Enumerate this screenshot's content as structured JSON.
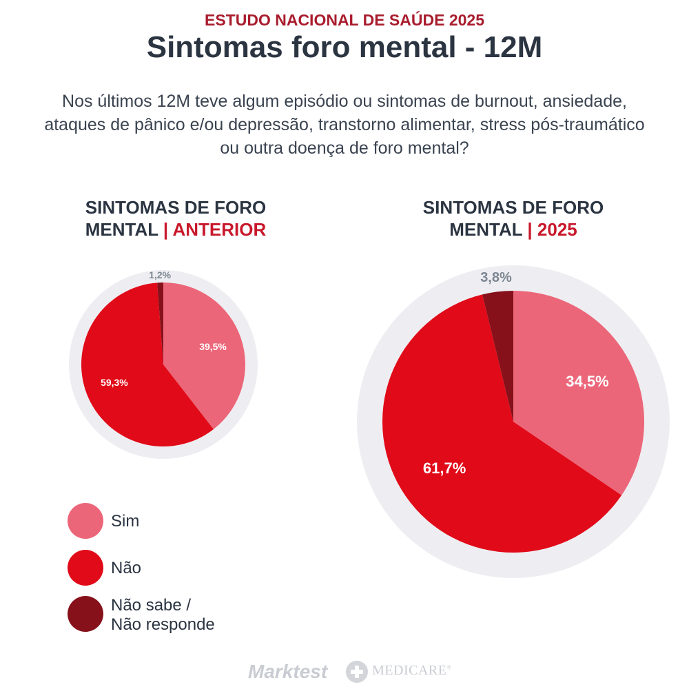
{
  "header": {
    "kicker": "ESTUDO NACIONAL DE SAÚDE 2025",
    "title": "Sintomas foro mental - 12M",
    "question": "Nos últimos 12M teve algum episódio ou sintomas de burnout, ansiedade, ataques de pânico e/ou depressão, transtorno alimentar, stress pós-traumático ou outra doença de foro mental?"
  },
  "colors": {
    "sim": "#ec6679",
    "nao": "#e10a18",
    "ns_nr": "#86111b",
    "ring": "#eeeef2",
    "accent": "#c8182b",
    "outside_label": "#7b8691"
  },
  "chart_data": [
    {
      "type": "pie",
      "title_main": "SINTOMAS DE FORO MENTAL",
      "title_sep": "|",
      "title_period": "ANTERIOR",
      "categories": [
        "Sim",
        "Não",
        "Não sabe / Não responde"
      ],
      "values": [
        39.5,
        59.3,
        1.2
      ],
      "labels": [
        "39,5%",
        "59,3%",
        "1,2%"
      ]
    },
    {
      "type": "pie",
      "title_main": "SINTOMAS DE FORO MENTAL",
      "title_sep": "|",
      "title_period": "2025",
      "categories": [
        "Sim",
        "Não",
        "Não sabe / Não responde"
      ],
      "values": [
        34.5,
        61.7,
        3.8
      ],
      "labels": [
        "34,5%",
        "61,7%",
        "3,8%"
      ]
    }
  ],
  "legend": {
    "sim": "Sim",
    "nao": "Não",
    "ns_nr_line1": "Não sabe /",
    "ns_nr_line2": "Não responde"
  },
  "footer": {
    "brand1": "Marktest",
    "brand2": "MEDICARE",
    "brand2_mark": "®"
  }
}
